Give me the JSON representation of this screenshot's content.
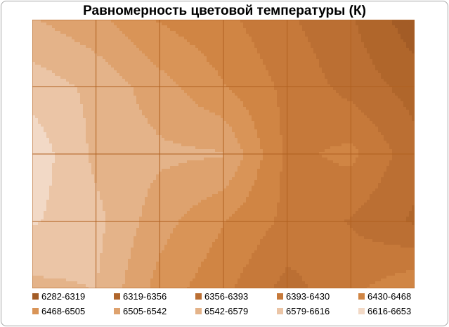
{
  "chart_data": {
    "type": "heatmap",
    "subtype": "filled-contour",
    "title": "Равномерность цветовой температуры (К)",
    "xlabel": "",
    "ylabel": "",
    "grid": true,
    "grid_cols": 6,
    "grid_rows": 4,
    "legend_position": "bottom",
    "levels": [
      {
        "label": "6282-6319",
        "min": 6282,
        "max": 6319,
        "color": "#a35c26"
      },
      {
        "label": "6319-6356",
        "min": 6319,
        "max": 6356,
        "color": "#b0662b"
      },
      {
        "label": "6356-6393",
        "min": 6356,
        "max": 6393,
        "color": "#bb6f33"
      },
      {
        "label": "6393-6430",
        "min": 6393,
        "max": 6430,
        "color": "#c6793a"
      },
      {
        "label": "6430-6468",
        "min": 6430,
        "max": 6468,
        "color": "#d08544"
      },
      {
        "label": "6468-6505",
        "min": 6468,
        "max": 6505,
        "color": "#d99457"
      },
      {
        "label": "6505-6542",
        "min": 6505,
        "max": 6542,
        "color": "#dea26e"
      },
      {
        "label": "6542-6579",
        "min": 6542,
        "max": 6579,
        "color": "#e4b389"
      },
      {
        "label": "6579-6616",
        "min": 6579,
        "max": 6616,
        "color": "#ebc5a6"
      },
      {
        "label": "6616-6653",
        "min": 6616,
        "max": 6653,
        "color": "#f2d9c6"
      }
    ],
    "z": [
      [
        6545,
        6515,
        6465,
        6440,
        6400,
        6360,
        6295
      ],
      [
        6600,
        6570,
        6520,
        6470,
        6420,
        6380,
        6340
      ],
      [
        6640,
        6570,
        6550,
        6545,
        6420,
        6440,
        6370
      ],
      [
        6620,
        6590,
        6520,
        6470,
        6420,
        6390,
        6350
      ],
      [
        6570,
        6580,
        6490,
        6440,
        6380,
        6420,
        6460
      ]
    ]
  }
}
